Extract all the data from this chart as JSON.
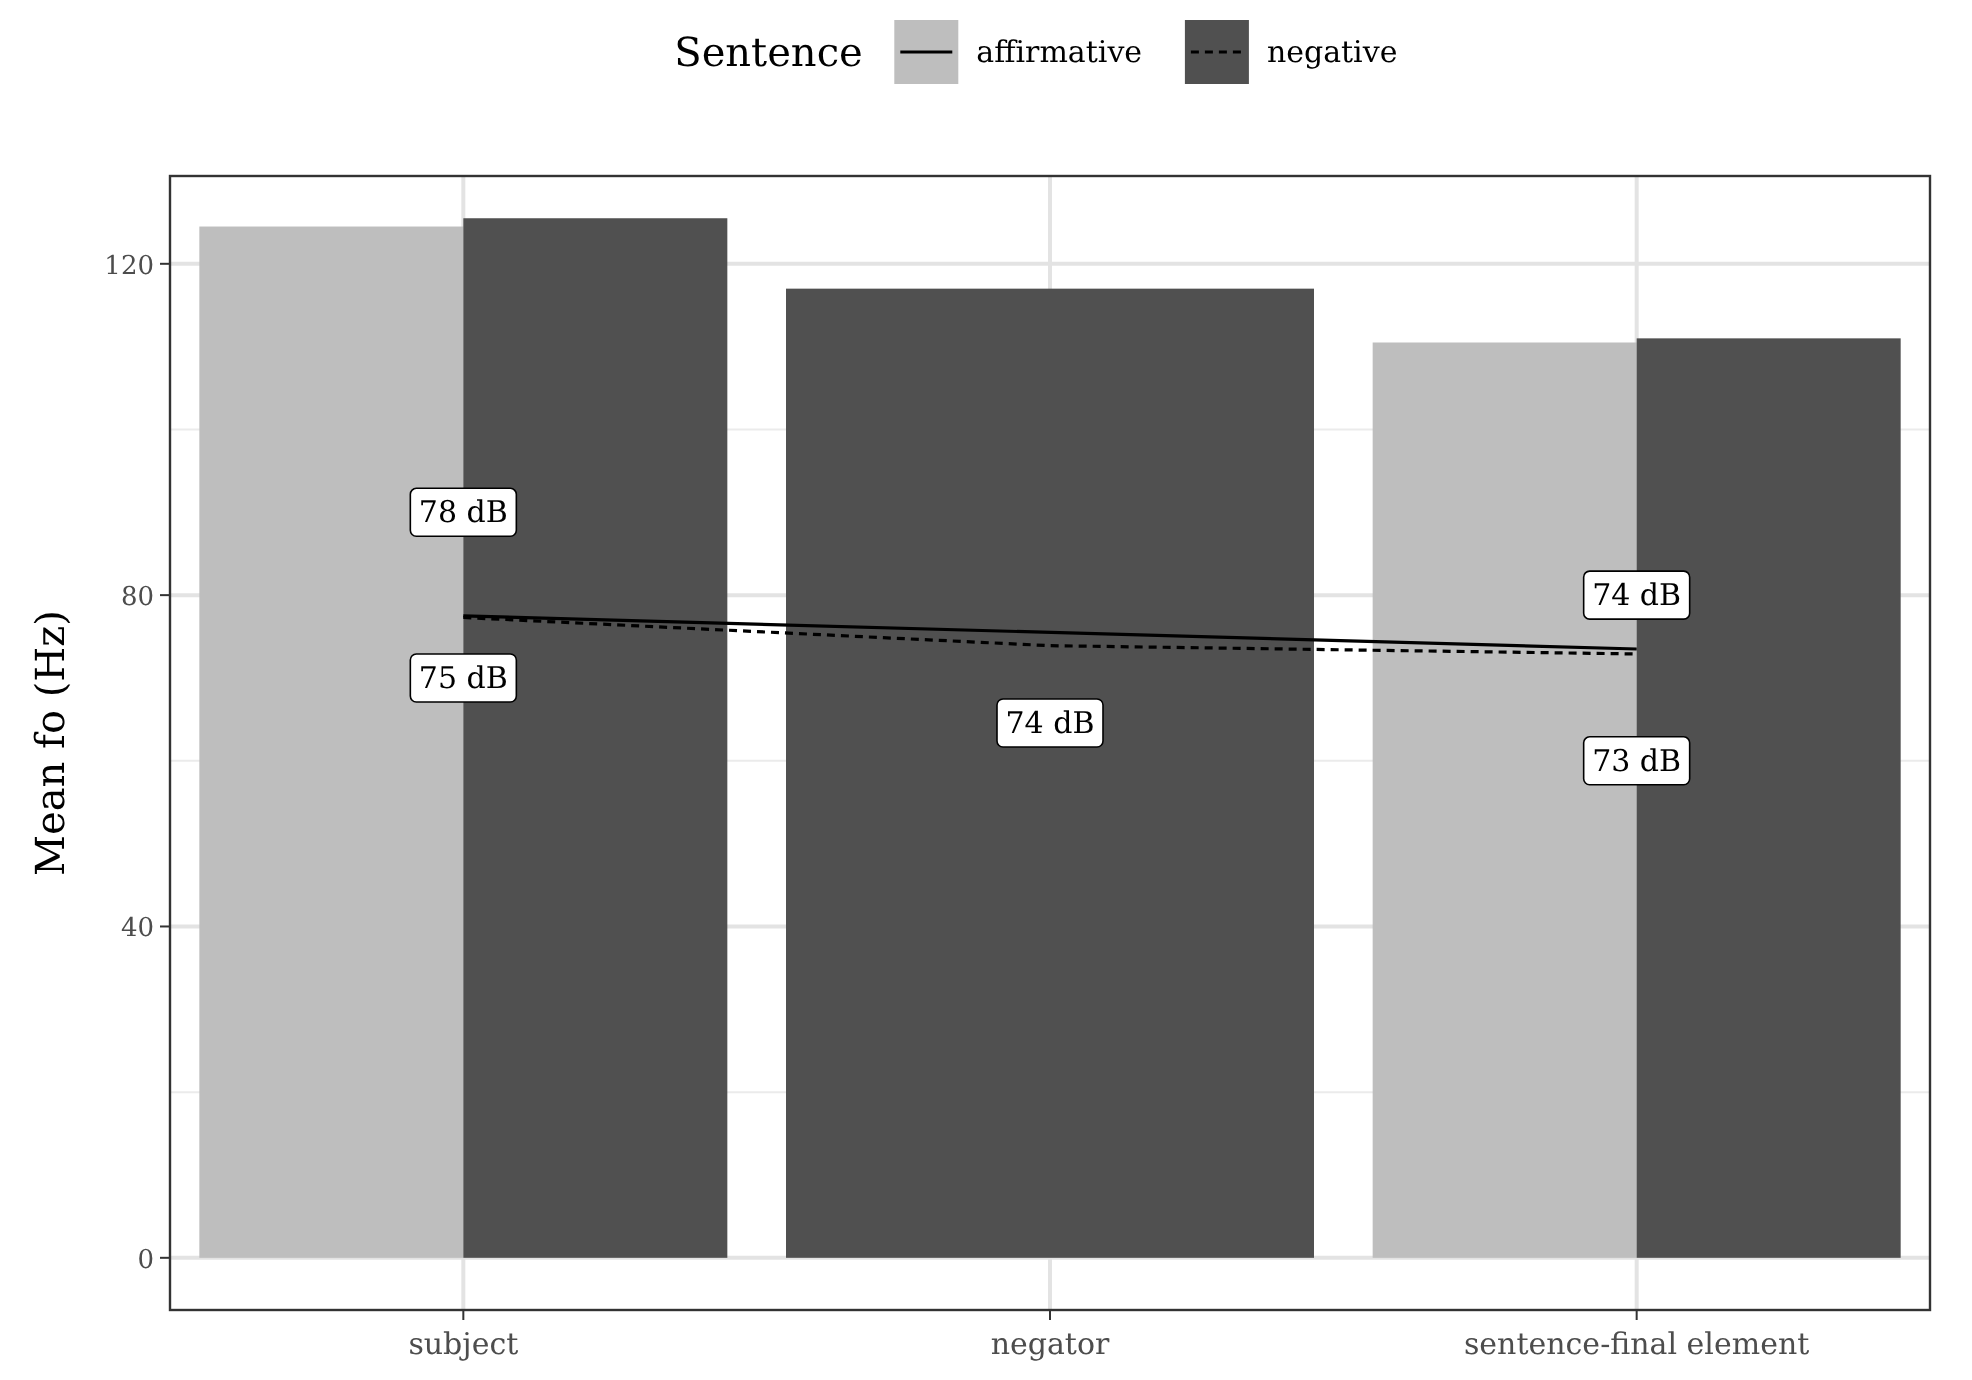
{
  "chart_data": {
    "type": "bar",
    "ylabel": "Mean fo (Hz)",
    "legend_title": "Sentence",
    "categories": [
      "subject",
      "negator",
      "sentence-final element"
    ],
    "series": [
      {
        "name": "affirmative",
        "color": "#bebebe",
        "values": [
          124.5,
          null,
          110.5
        ]
      },
      {
        "name": "negative",
        "color": "#505050",
        "values": [
          125.5,
          117,
          111
        ]
      },
      {
        "type": "line",
        "color": "#000000",
        "line_style": "solid",
        "x": [
          "subject",
          "sentence-final element"
        ],
        "values": [
          77.5,
          73.5
        ]
      },
      {
        "type": "line",
        "color": "#000000",
        "line_style": "dashed",
        "x": [
          "subject",
          "negator",
          "sentence-final element"
        ],
        "values": [
          77.3,
          73.9,
          72.9
        ]
      }
    ],
    "annotations": [
      {
        "text": "78 dB",
        "x": "subject",
        "y": 90
      },
      {
        "text": "75 dB",
        "x": "subject",
        "y": 70
      },
      "74 dB",
      {
        "text": "74 dB",
        "x": "sentence-final element",
        "y": 80
      },
      {
        "text": "73 dB",
        "x": "sentence-final element",
        "y": 60
      }
    ],
    "ylim": [
      -6.3,
      130.6
    ],
    "yticks": [
      0,
      40,
      80,
      120
    ],
    "grid": true,
    "legend": "top"
  }
}
